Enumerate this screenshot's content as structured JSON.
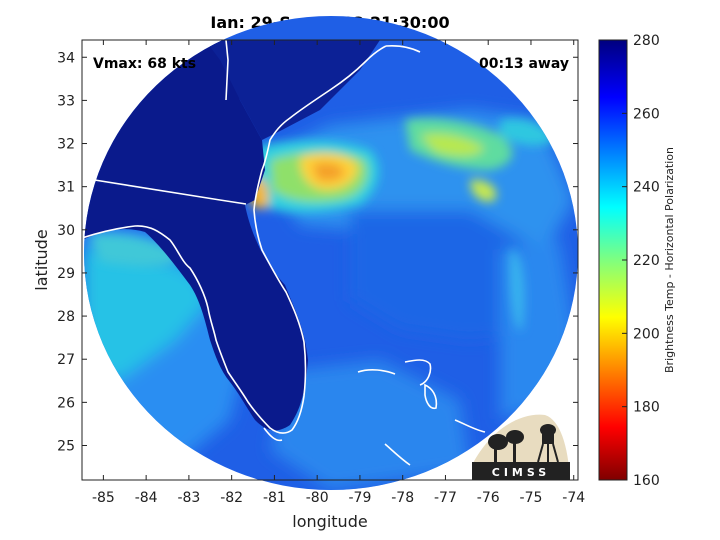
{
  "title": "Ian: 29-Sep-2022 21:30:00",
  "vmax_label": "Vmax: 68 kts",
  "time_label": "00:13 away",
  "xlabel": "longitude",
  "ylabel": "latitude",
  "x_ticks": [
    "-85",
    "-84",
    "-83",
    "-82",
    "-81",
    "-80",
    "-79",
    "-78",
    "-77",
    "-76",
    "-75",
    "-74"
  ],
  "y_ticks": [
    "25",
    "26",
    "27",
    "28",
    "29",
    "30",
    "31",
    "32",
    "33",
    "34"
  ],
  "colorbar": {
    "label": "Brightness Temp - Horizontal Polarization",
    "ticks": [
      "160",
      "180",
      "200",
      "220",
      "240",
      "260",
      "280"
    ],
    "range": [
      160,
      280
    ]
  },
  "logo_text": "CIMSS",
  "map": {
    "lon_range": [
      -85.5,
      -73.9
    ],
    "lat_range": [
      24.2,
      34.4
    ]
  }
}
